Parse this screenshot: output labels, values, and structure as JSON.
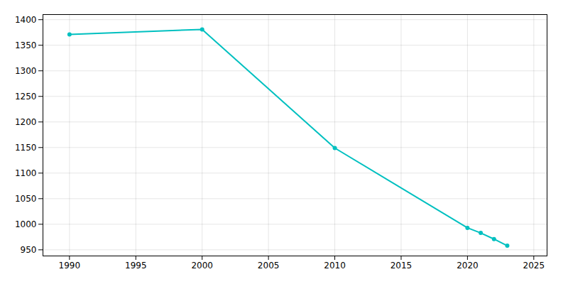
{
  "chart_data": {
    "type": "line",
    "x": [
      1990,
      2000,
      2010,
      2020,
      2021,
      2022,
      2023
    ],
    "values": [
      1371,
      1381,
      1149,
      993,
      983,
      971,
      958
    ],
    "color": "#00C0C0",
    "marker": "circle",
    "xlim": [
      1988,
      2026
    ],
    "xticks": [
      1990,
      1995,
      2000,
      2005,
      2010,
      2015,
      2020,
      2025
    ],
    "ylim": [
      938,
      1410
    ],
    "yticks": [
      950,
      1000,
      1050,
      1100,
      1150,
      1200,
      1250,
      1300,
      1350,
      1400
    ],
    "grid": true
  }
}
